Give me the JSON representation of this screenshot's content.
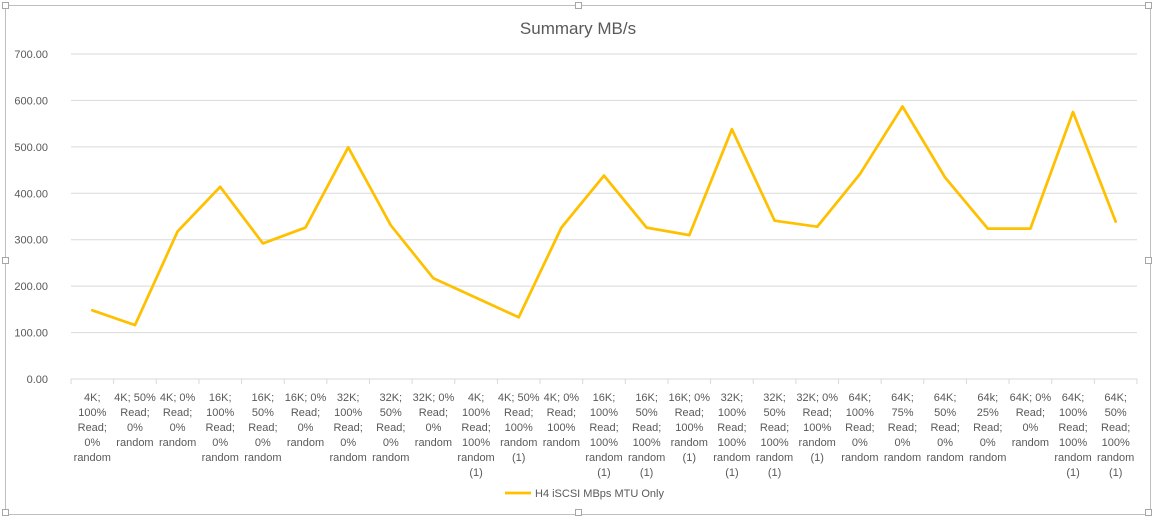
{
  "chart_data": {
    "type": "line",
    "title": "Summary MB/s",
    "xlabel": "",
    "ylabel": "",
    "ylim": [
      0,
      700
    ],
    "y_ticks": [
      "0.00",
      "100.00",
      "200.00",
      "300.00",
      "400.00",
      "500.00",
      "600.00",
      "700.00"
    ],
    "grid": true,
    "legend_position": "bottom",
    "categories": [
      "4K; 100% Read; 0% random",
      "4K; 50% Read; 0% random",
      "4K; 0% Read; 0% random",
      "16K; 100% Read; 0% random",
      "16K; 50% Read; 0% random",
      "16K; 0% Read; 0% random",
      "32K; 100% Read; 0% random",
      "32K; 50% Read; 0% random",
      "32K; 0% Read; 0% random",
      "4K; 100% Read; 100% random (1)",
      "4K; 50% Read; 100% random (1)",
      "4K; 0% Read; 100% random",
      "16K; 100% Read; 100% random (1)",
      "16K; 50% Read; 100% random (1)",
      "16K; 0% Read; 100% random (1)",
      "32K; 100% Read; 100% random (1)",
      "32K; 50% Read; 100% random (1)",
      "32K; 0% Read; 100% random (1)",
      "64K; 100% Read; 0% random",
      "64K; 75% Read; 0% random",
      "64K; 50% Read; 0% random",
      "64k; 25% Read; 0% random",
      "64K; 0% Read; 0% random",
      "64K; 100% Read; 100% random (1)",
      "64K; 50% Read; 100% random (1)"
    ],
    "category_lines": [
      [
        "4K;",
        "100%",
        "Read;",
        "0%",
        "random"
      ],
      [
        "4K; 50%",
        "Read;",
        "0%",
        "random"
      ],
      [
        "4K; 0%",
        "Read;",
        "0%",
        "random"
      ],
      [
        "16K;",
        "100%",
        "Read;",
        "0%",
        "random"
      ],
      [
        "16K;",
        "50%",
        "Read;",
        "0%",
        "random"
      ],
      [
        "16K; 0%",
        "Read;",
        "0%",
        "random"
      ],
      [
        "32K;",
        "100%",
        "Read;",
        "0%",
        "random"
      ],
      [
        "32K;",
        "50%",
        "Read;",
        "0%",
        "random"
      ],
      [
        "32K; 0%",
        "Read;",
        "0%",
        "random"
      ],
      [
        "4K;",
        "100%",
        "Read;",
        "100%",
        "random",
        "(1)"
      ],
      [
        "4K; 50%",
        "Read;",
        "100%",
        "random",
        "(1)"
      ],
      [
        "4K; 0%",
        "Read;",
        "100%",
        "random"
      ],
      [
        "16K;",
        "100%",
        "Read;",
        "100%",
        "random",
        "(1)"
      ],
      [
        "16K;",
        "50%",
        "Read;",
        "100%",
        "random",
        "(1)"
      ],
      [
        "16K; 0%",
        "Read;",
        "100%",
        "random",
        "(1)"
      ],
      [
        "32K;",
        "100%",
        "Read;",
        "100%",
        "random",
        "(1)"
      ],
      [
        "32K;",
        "50%",
        "Read;",
        "100%",
        "random",
        "(1)"
      ],
      [
        "32K; 0%",
        "Read;",
        "100%",
        "random",
        "(1)"
      ],
      [
        "64K;",
        "100%",
        "Read;",
        "0%",
        "random"
      ],
      [
        "64K;",
        "75%",
        "Read;",
        "0%",
        "random"
      ],
      [
        "64K;",
        "50%",
        "Read;",
        "0%",
        "random"
      ],
      [
        "64k;",
        "25%",
        "Read;",
        "0%",
        "random"
      ],
      [
        "64K; 0%",
        "Read;",
        "0%",
        "random"
      ],
      [
        "64K;",
        "100%",
        "Read;",
        "100%",
        "random",
        "(1)"
      ],
      [
        "64K;",
        "50%",
        "Read;",
        "100%",
        "random",
        "(1)"
      ]
    ],
    "series": [
      {
        "name": "H4 iSCSI MBps MTU Only",
        "color": "#FFC000",
        "values": [
          148,
          116,
          318,
          414,
          292,
          326,
          499,
          331,
          217,
          175,
          133,
          326,
          438,
          326,
          310,
          538,
          341,
          328,
          441,
          587,
          434,
          324,
          324,
          575,
          339
        ]
      }
    ]
  }
}
